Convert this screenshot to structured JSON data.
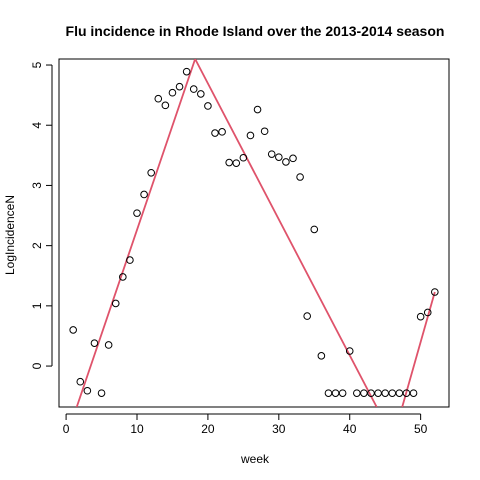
{
  "chart_data": {
    "type": "scatter",
    "title": "Flu incidence in Rhode Island over the 2013-2014 season",
    "xlabel": "week",
    "ylabel": "LogIncidenceN",
    "xlim": [
      -1,
      54
    ],
    "ylim": [
      -0.68,
      5.1
    ],
    "xticks": [
      0,
      10,
      20,
      30,
      40,
      50
    ],
    "yticks": [
      0,
      1,
      2,
      3,
      4,
      5
    ],
    "grid": false,
    "point_color": "#000000",
    "line_color": "#DF536B",
    "points": {
      "x": [
        1,
        2,
        3,
        4,
        5,
        6,
        7,
        8,
        9,
        10,
        11,
        12,
        13,
        14,
        15,
        16,
        17,
        18,
        19,
        20,
        21,
        22,
        23,
        24,
        25,
        26,
        27,
        28,
        29,
        30,
        31,
        32,
        33,
        34,
        35,
        36,
        37,
        38,
        39,
        40,
        41,
        42,
        43,
        44,
        45,
        46,
        47,
        48,
        49,
        50,
        51,
        52
      ],
      "y": [
        0.6,
        -0.26,
        -0.41,
        0.38,
        -0.45,
        0.35,
        1.04,
        1.48,
        1.76,
        2.54,
        2.85,
        3.21,
        4.44,
        4.33,
        4.54,
        4.64,
        4.89,
        4.6,
        4.52,
        4.32,
        3.87,
        3.89,
        3.38,
        3.37,
        3.46,
        3.83,
        4.26,
        3.9,
        3.52,
        3.47,
        3.39,
        3.45,
        3.14,
        0.83,
        2.27,
        0.17,
        -0.45,
        -0.45,
        -0.45,
        0.25,
        -0.45,
        -0.45,
        -0.45,
        -0.45,
        -0.45,
        -0.45,
        -0.45,
        -0.45,
        -0.45,
        0.82,
        0.89,
        1.23
      ]
    },
    "fit_lines": [
      {
        "x": [
          1.5,
          18.2
        ],
        "y": [
          -0.68,
          5.1
        ]
      },
      {
        "x": [
          18.2,
          43.8
        ],
        "y": [
          5.1,
          -0.68
        ]
      },
      {
        "x": [
          47.4,
          52
        ],
        "y": [
          -0.68,
          1.23
        ]
      }
    ]
  }
}
